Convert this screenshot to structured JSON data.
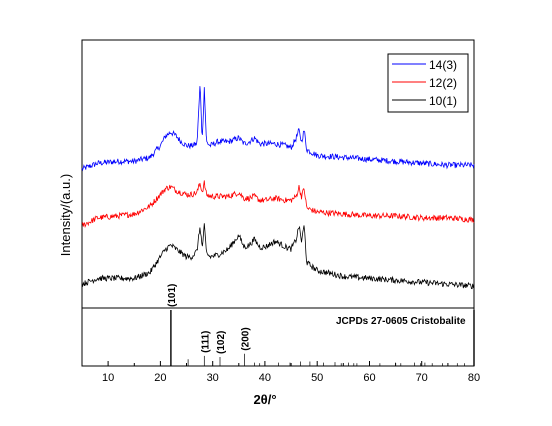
{
  "chart_data": {
    "type": "line",
    "xlabel": "2θ/°",
    "ylabel": "Intensity/(a.u.)",
    "xlim": [
      5,
      80
    ],
    "x_ticks": [
      10,
      20,
      30,
      40,
      50,
      60,
      70,
      80
    ],
    "legend_position": "top-right",
    "series": [
      {
        "name": "14(3)",
        "color": "#0000ff",
        "offset": 0.62,
        "x": [
          5,
          8,
          12,
          15,
          18,
          20,
          21,
          22,
          23,
          24,
          25,
          26,
          27,
          27.6,
          28,
          28.4,
          28.8,
          29.5,
          31,
          33,
          35,
          36,
          37,
          38,
          39,
          40,
          42,
          44,
          45,
          46,
          46.5,
          47,
          47.5,
          48,
          50,
          55,
          60,
          65,
          70,
          75,
          80
        ],
        "values": [
          0.0,
          0.03,
          0.04,
          0.04,
          0.06,
          0.12,
          0.17,
          0.19,
          0.17,
          0.14,
          0.12,
          0.12,
          0.13,
          0.44,
          0.14,
          0.42,
          0.14,
          0.12,
          0.14,
          0.14,
          0.16,
          0.13,
          0.14,
          0.16,
          0.13,
          0.13,
          0.13,
          0.12,
          0.11,
          0.16,
          0.2,
          0.14,
          0.2,
          0.1,
          0.07,
          0.06,
          0.05,
          0.04,
          0.03,
          0.02,
          0.02
        ]
      },
      {
        "name": "12(2)",
        "color": "#ff0000",
        "offset": 0.33,
        "x": [
          5,
          8,
          12,
          15,
          18,
          20,
          21,
          22,
          23,
          24,
          25,
          26,
          27,
          27.6,
          28,
          28.4,
          28.8,
          29.5,
          31,
          33,
          35,
          36,
          37,
          38,
          39,
          40,
          42,
          44,
          45,
          46,
          46.5,
          47,
          47.5,
          48,
          50,
          55,
          60,
          65,
          70,
          75,
          80
        ],
        "values": [
          0.0,
          0.04,
          0.05,
          0.06,
          0.1,
          0.16,
          0.19,
          0.2,
          0.18,
          0.17,
          0.16,
          0.16,
          0.17,
          0.22,
          0.17,
          0.22,
          0.16,
          0.15,
          0.15,
          0.15,
          0.17,
          0.14,
          0.14,
          0.15,
          0.13,
          0.13,
          0.14,
          0.13,
          0.13,
          0.15,
          0.2,
          0.15,
          0.19,
          0.09,
          0.07,
          0.06,
          0.05,
          0.05,
          0.04,
          0.04,
          0.03
        ]
      },
      {
        "name": "10(1)",
        "color": "#000000",
        "offset": 0.0,
        "x": [
          5,
          8,
          12,
          15,
          18,
          20,
          21,
          22,
          23,
          24,
          25,
          26,
          27,
          27.6,
          28,
          28.4,
          28.8,
          29.5,
          31,
          33,
          35,
          36,
          37,
          38,
          39,
          40,
          42,
          44,
          45,
          46,
          46.5,
          47,
          47.5,
          48,
          50,
          55,
          60,
          65,
          70,
          75,
          80
        ],
        "values": [
          0.03,
          0.06,
          0.06,
          0.06,
          0.09,
          0.17,
          0.21,
          0.23,
          0.21,
          0.19,
          0.17,
          0.17,
          0.2,
          0.33,
          0.21,
          0.33,
          0.19,
          0.17,
          0.18,
          0.21,
          0.28,
          0.22,
          0.23,
          0.26,
          0.22,
          0.22,
          0.25,
          0.22,
          0.21,
          0.26,
          0.33,
          0.25,
          0.33,
          0.14,
          0.1,
          0.07,
          0.06,
          0.05,
          0.04,
          0.03,
          0.02
        ]
      }
    ],
    "reference": {
      "label": "JCPDs 27-0605 Cristobalite",
      "peaks": [
        {
          "x": 22.0,
          "h": 1.0,
          "label": "(101)"
        },
        {
          "x": 25.3,
          "h": 0.12
        },
        {
          "x": 28.4,
          "h": 0.18,
          "label": "(111)"
        },
        {
          "x": 31.4,
          "h": 0.16,
          "label": "(102)"
        },
        {
          "x": 36.1,
          "h": 0.22,
          "label": "(200)"
        },
        {
          "x": 38.0,
          "h": 0.06
        },
        {
          "x": 39.0,
          "h": 0.05
        },
        {
          "x": 42.6,
          "h": 0.06
        },
        {
          "x": 44.8,
          "h": 0.06
        },
        {
          "x": 46.8,
          "h": 0.08
        },
        {
          "x": 48.6,
          "h": 0.08
        },
        {
          "x": 51.2,
          "h": 0.06
        },
        {
          "x": 53.4,
          "h": 0.07
        },
        {
          "x": 54.6,
          "h": 0.05
        },
        {
          "x": 56.0,
          "h": 0.06
        },
        {
          "x": 57.0,
          "h": 0.05
        },
        {
          "x": 57.6,
          "h": 0.05
        },
        {
          "x": 60.0,
          "h": 0.05
        },
        {
          "x": 62.0,
          "h": 0.05
        },
        {
          "x": 65.0,
          "h": 0.06
        },
        {
          "x": 66.0,
          "h": 0.05
        },
        {
          "x": 68.6,
          "h": 0.06
        },
        {
          "x": 69.8,
          "h": 0.05
        },
        {
          "x": 70.6,
          "h": 0.06
        },
        {
          "x": 72.0,
          "h": 0.05
        },
        {
          "x": 74.0,
          "h": 0.05
        },
        {
          "x": 76.8,
          "h": 0.05
        },
        {
          "x": 78.2,
          "h": 0.05
        },
        {
          "x": 80.0,
          "h": 1.0
        }
      ]
    }
  }
}
